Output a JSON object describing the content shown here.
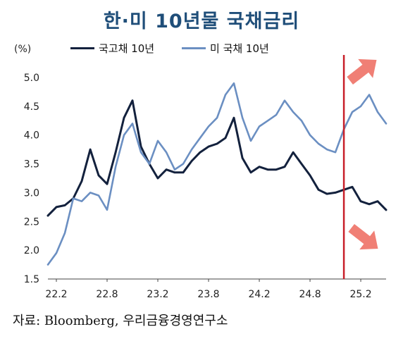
{
  "chart_data": {
    "type": "line",
    "title": "한·미 10년물 국채금리",
    "unit_label": "(%)",
    "source": "자료: Bloomberg, 우리금융경영연구소",
    "ylim": [
      1.5,
      5.0
    ],
    "yticks": [
      "5.0",
      "4.5",
      "4.0",
      "3.5",
      "3.0",
      "2.5",
      "2.0",
      "1.5"
    ],
    "xlim": [
      2022.0,
      2025.333
    ],
    "xticks": [
      "22.2",
      "22.8",
      "23.2",
      "23.8",
      "24.2",
      "24.8",
      "25.2"
    ],
    "legend_position": "top",
    "vertical_marker_x": 2024.917,
    "arrows": [
      {
        "direction": "up",
        "color": "#f07f75"
      },
      {
        "direction": "down",
        "color": "#f07f75"
      }
    ],
    "series": [
      {
        "name": "국고채 10년",
        "color": "#13213d",
        "x": [
          2022.0,
          2022.083,
          2022.167,
          2022.25,
          2022.333,
          2022.417,
          2022.5,
          2022.583,
          2022.667,
          2022.75,
          2022.833,
          2022.917,
          2023.0,
          2023.083,
          2023.167,
          2023.25,
          2023.333,
          2023.417,
          2023.5,
          2023.583,
          2023.667,
          2023.75,
          2023.833,
          2023.917,
          2024.0,
          2024.083,
          2024.167,
          2024.25,
          2024.333,
          2024.417,
          2024.5,
          2024.583,
          2024.667,
          2024.75,
          2024.833,
          2024.917,
          2025.0,
          2025.083,
          2025.167,
          2025.25,
          2025.333
        ],
        "values": [
          2.6,
          2.75,
          2.78,
          2.9,
          3.2,
          3.75,
          3.3,
          3.15,
          3.7,
          4.3,
          4.6,
          3.8,
          3.5,
          3.25,
          3.4,
          3.35,
          3.35,
          3.55,
          3.7,
          3.8,
          3.85,
          3.95,
          4.3,
          3.6,
          3.35,
          3.45,
          3.4,
          3.4,
          3.45,
          3.7,
          3.5,
          3.3,
          3.05,
          2.98,
          3.0,
          3.05,
          3.1,
          2.85,
          2.8,
          2.85,
          2.7
        ]
      },
      {
        "name": "미 국채 10년",
        "color": "#6b8fc2",
        "x": [
          2022.0,
          2022.083,
          2022.167,
          2022.25,
          2022.333,
          2022.417,
          2022.5,
          2022.583,
          2022.667,
          2022.75,
          2022.833,
          2022.917,
          2023.0,
          2023.083,
          2023.167,
          2023.25,
          2023.333,
          2023.417,
          2023.5,
          2023.583,
          2023.667,
          2023.75,
          2023.833,
          2023.917,
          2024.0,
          2024.083,
          2024.167,
          2024.25,
          2024.333,
          2024.417,
          2024.5,
          2024.583,
          2024.667,
          2024.75,
          2024.833,
          2024.917,
          2025.0,
          2025.083,
          2025.167,
          2025.25,
          2025.333
        ],
        "values": [
          1.75,
          1.95,
          2.3,
          2.9,
          2.85,
          3.0,
          2.95,
          2.7,
          3.45,
          4.0,
          4.2,
          3.7,
          3.5,
          3.9,
          3.7,
          3.4,
          3.5,
          3.75,
          3.95,
          4.15,
          4.3,
          4.7,
          4.9,
          4.3,
          3.9,
          4.15,
          4.25,
          4.35,
          4.6,
          4.4,
          4.25,
          4.0,
          3.85,
          3.75,
          3.7,
          4.1,
          4.4,
          4.5,
          4.7,
          4.4,
          4.2
        ]
      }
    ]
  }
}
